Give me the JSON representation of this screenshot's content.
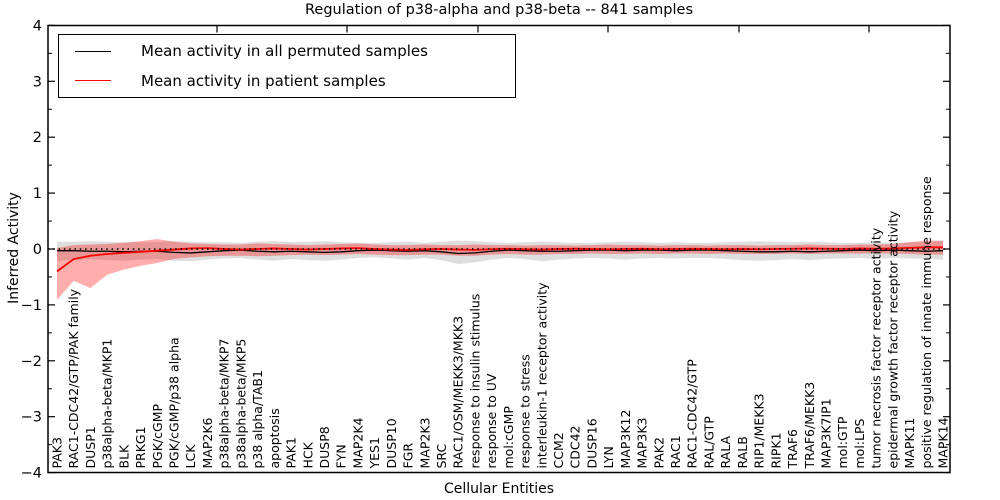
{
  "figure": {
    "title": "Regulation of p38-alpha and p38-beta -- 841 samples",
    "xlabel": "Cellular Entities",
    "ylabel": "Inferred Activity"
  },
  "legend": {
    "items": [
      {
        "label": "Mean activity in all permuted samples",
        "color": "#000000"
      },
      {
        "label": "Mean activity in patient samples",
        "color": "#ff0000"
      }
    ]
  },
  "colors": {
    "patient_line": "#ff0000",
    "permuted_line": "#000000",
    "patient_band": "#ff0000",
    "patient_band_opacity": 0.32,
    "permuted_band": "#000000",
    "permuted_band_opacity": 0.13,
    "zero_line": "#000000",
    "frame": "#000000"
  },
  "chart_data": {
    "type": "line",
    "title": "Regulation of p38-alpha and p38-beta -- 841 samples",
    "xlabel": "Cellular Entities",
    "ylabel": "Inferred Activity",
    "ylim": [
      -4,
      4
    ],
    "grid": false,
    "legend_position": "upper-left",
    "y_ticks": [
      {
        "value": 4,
        "label": "4"
      },
      {
        "value": 3,
        "label": "3"
      },
      {
        "value": 2,
        "label": "2"
      },
      {
        "value": 1,
        "label": "1"
      },
      {
        "value": 0,
        "label": "0"
      },
      {
        "value": -1,
        "label": "−1"
      },
      {
        "value": -2,
        "label": "−2"
      },
      {
        "value": -3,
        "label": "−3"
      },
      {
        "value": -4,
        "label": "−4"
      }
    ],
    "zero_reference_line": 0,
    "categories": [
      "PAK3",
      "RAC1-CDC42/GTP/PAK family",
      "DUSP1",
      "p38alpha-beta/MKP1",
      "BLK",
      "PRKG1",
      "PGK/cGMP",
      "PGK/cGMP/p38 alpha",
      "LCK",
      "MAP2K6",
      "p38alpha-beta/MKP7",
      "p38alpha-beta/MKP5",
      "p38 alpha/TAB1",
      "apoptosis",
      "PAK1",
      "HCK",
      "DUSP8",
      "FYN",
      "MAP2K4",
      "YES1",
      "DUSP10",
      "FGR",
      "MAP2K3",
      "SRC",
      "RAC1/OSM/MEKK3/MKK3",
      "response to insulin stimulus",
      "response to UV",
      "mol:cGMP",
      "response to stress",
      "interleukin-1 receptor activity",
      "CCM2",
      "CDC42",
      "DUSP16",
      "LYN",
      "MAP3K12",
      "MAP3K3",
      "PAK2",
      "RAC1",
      "RAC1-CDC42/GTP",
      "RAL/GTP",
      "RALA",
      "RALB",
      "RIP1/MEKK3",
      "RIPK1",
      "TRAF6",
      "TRAF6/MEKK3",
      "MAP3K7IP1",
      "mol:GTP",
      "mol:LPS",
      "tumor necrosis factor receptor activity",
      "epidermal growth factor receptor activity",
      "MAPK11",
      "positive regulation of innate immune response",
      "MAPK14"
    ],
    "series": [
      {
        "name": "Mean activity in all permuted samples",
        "values": [
          -0.03,
          -0.03,
          -0.04,
          -0.04,
          -0.05,
          -0.04,
          -0.04,
          -0.06,
          -0.07,
          -0.05,
          -0.03,
          -0.02,
          -0.04,
          -0.05,
          -0.04,
          -0.05,
          -0.06,
          -0.05,
          -0.03,
          -0.02,
          -0.03,
          -0.04,
          -0.03,
          -0.05,
          -0.08,
          -0.07,
          -0.04,
          -0.02,
          -0.03,
          -0.04,
          -0.04,
          -0.03,
          -0.02,
          -0.02,
          -0.03,
          -0.02,
          -0.02,
          -0.03,
          -0.02,
          -0.02,
          -0.03,
          -0.04,
          -0.05,
          -0.05,
          -0.04,
          -0.05,
          -0.04,
          -0.03,
          -0.02,
          -0.03,
          -0.02,
          -0.03,
          -0.04,
          -0.03
        ],
        "band_top": [
          0.13,
          0.13,
          0.14,
          0.13,
          0.12,
          0.12,
          0.13,
          0.14,
          0.13,
          0.12,
          0.12,
          0.11,
          0.13,
          0.14,
          0.12,
          0.13,
          0.14,
          0.12,
          0.11,
          0.11,
          0.12,
          0.13,
          0.11,
          0.13,
          0.15,
          0.14,
          0.12,
          0.11,
          0.12,
          0.13,
          0.12,
          0.11,
          0.11,
          0.12,
          0.13,
          0.12,
          0.11,
          0.12,
          0.11,
          0.11,
          0.12,
          0.13,
          0.14,
          0.13,
          0.12,
          0.13,
          0.12,
          0.11,
          0.11,
          0.12,
          0.11,
          0.12,
          0.13,
          0.14
        ],
        "band_bottom": [
          -0.22,
          -0.19,
          -0.18,
          -0.2,
          -0.21,
          -0.19,
          -0.18,
          -0.21,
          -0.22,
          -0.19,
          -0.17,
          -0.16,
          -0.19,
          -0.21,
          -0.18,
          -0.2,
          -0.21,
          -0.19,
          -0.16,
          -0.15,
          -0.17,
          -0.19,
          -0.16,
          -0.2,
          -0.27,
          -0.24,
          -0.19,
          -0.16,
          -0.18,
          -0.22,
          -0.19,
          -0.17,
          -0.16,
          -0.17,
          -0.19,
          -0.17,
          -0.16,
          -0.17,
          -0.16,
          -0.16,
          -0.18,
          -0.2,
          -0.21,
          -0.2,
          -0.18,
          -0.2,
          -0.18,
          -0.17,
          -0.16,
          -0.18,
          -0.16,
          -0.17,
          -0.18,
          -0.19
        ]
      },
      {
        "name": "Mean activity in patient samples",
        "values": [
          -0.4,
          -0.18,
          -0.12,
          -0.09,
          -0.07,
          -0.05,
          -0.03,
          -0.01,
          0.01,
          0.015,
          0.0,
          -0.01,
          0.0,
          0.01,
          0.0,
          -0.01,
          0.0,
          0.01,
          0.015,
          0.0,
          -0.01,
          -0.015,
          -0.005,
          0.0,
          -0.01,
          -0.015,
          -0.005,
          0.005,
          -0.005,
          -0.01,
          0.0,
          0.005,
          0.0,
          -0.005,
          0.0,
          0.005,
          -0.005,
          0.0,
          0.005,
          0.0,
          -0.005,
          0.0,
          -0.005,
          0.0,
          0.005,
          0.01,
          0.005,
          0.0,
          0.01,
          0.005,
          0.01,
          0.02,
          0.03,
          0.03
        ],
        "band_top": [
          0.02,
          0.07,
          0.08,
          0.09,
          0.11,
          0.14,
          0.18,
          0.13,
          0.1,
          0.09,
          0.08,
          0.08,
          0.1,
          0.09,
          0.08,
          0.07,
          0.08,
          0.09,
          0.1,
          0.08,
          0.07,
          0.07,
          0.08,
          0.07,
          0.07,
          0.08,
          0.07,
          0.07,
          0.06,
          0.07,
          0.07,
          0.06,
          0.07,
          0.08,
          0.07,
          0.07,
          0.06,
          0.07,
          0.07,
          0.06,
          0.07,
          0.07,
          0.06,
          0.07,
          0.07,
          0.08,
          0.07,
          0.07,
          0.08,
          0.08,
          0.09,
          0.12,
          0.15,
          0.15
        ],
        "band_bottom": [
          -0.91,
          -0.57,
          -0.7,
          -0.46,
          -0.37,
          -0.3,
          -0.25,
          -0.18,
          -0.15,
          -0.13,
          -0.12,
          -0.12,
          -0.13,
          -0.12,
          -0.11,
          -0.1,
          -0.11,
          -0.1,
          -0.09,
          -0.1,
          -0.11,
          -0.11,
          -0.1,
          -0.1,
          -0.12,
          -0.12,
          -0.1,
          -0.09,
          -0.1,
          -0.1,
          -0.09,
          -0.09,
          -0.08,
          -0.09,
          -0.09,
          -0.08,
          -0.09,
          -0.08,
          -0.08,
          -0.09,
          -0.08,
          -0.09,
          -0.09,
          -0.09,
          -0.08,
          -0.09,
          -0.08,
          -0.08,
          -0.08,
          -0.08,
          -0.08,
          -0.09,
          -0.1,
          -0.1
        ]
      }
    ]
  }
}
